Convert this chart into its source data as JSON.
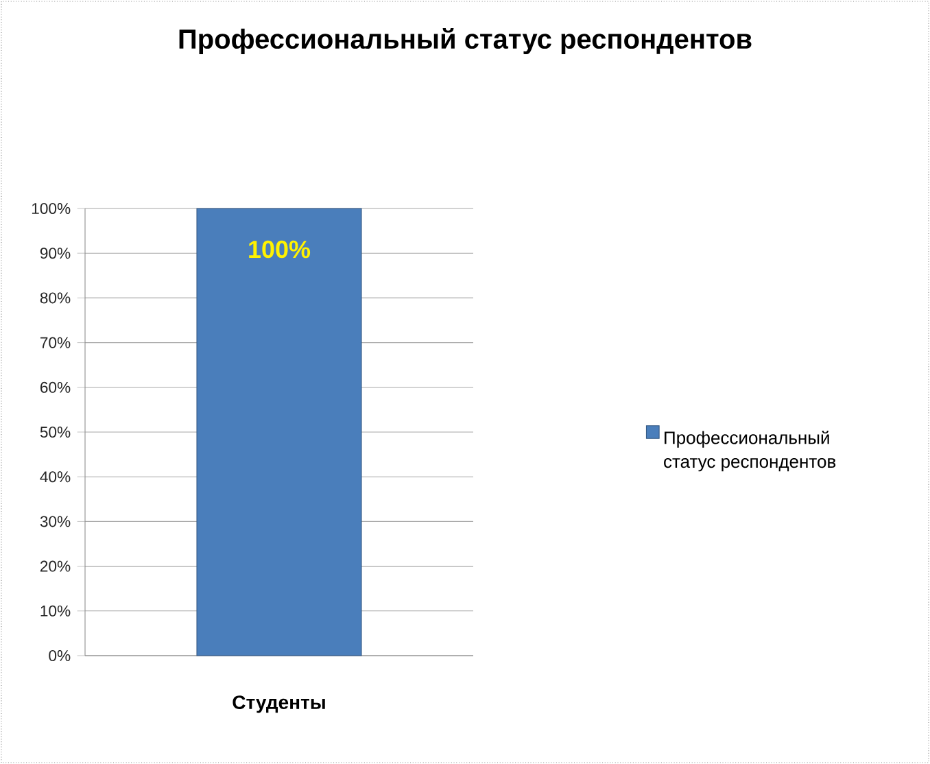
{
  "chart_data": {
    "type": "bar",
    "title": "Профессиональный статус респондентов",
    "categories": [
      "Студенты"
    ],
    "series": [
      {
        "name": "Профессиональный статус респондентов",
        "color": "#4a7ebb",
        "values": [
          100
        ],
        "value_labels": [
          "100%"
        ]
      }
    ],
    "ylim": [
      0,
      100
    ],
    "yticks": [
      {
        "value": 0,
        "label": "0%"
      },
      {
        "value": 10,
        "label": "10%"
      },
      {
        "value": 20,
        "label": "20%"
      },
      {
        "value": 30,
        "label": "30%"
      },
      {
        "value": 40,
        "label": "40%"
      },
      {
        "value": 50,
        "label": "50%"
      },
      {
        "value": 60,
        "label": "60%"
      },
      {
        "value": 70,
        "label": "70%"
      },
      {
        "value": 80,
        "label": "80%"
      },
      {
        "value": 90,
        "label": "90%"
      },
      {
        "value": 100,
        "label": "100%"
      }
    ],
    "grid": "y",
    "legend": "right"
  }
}
